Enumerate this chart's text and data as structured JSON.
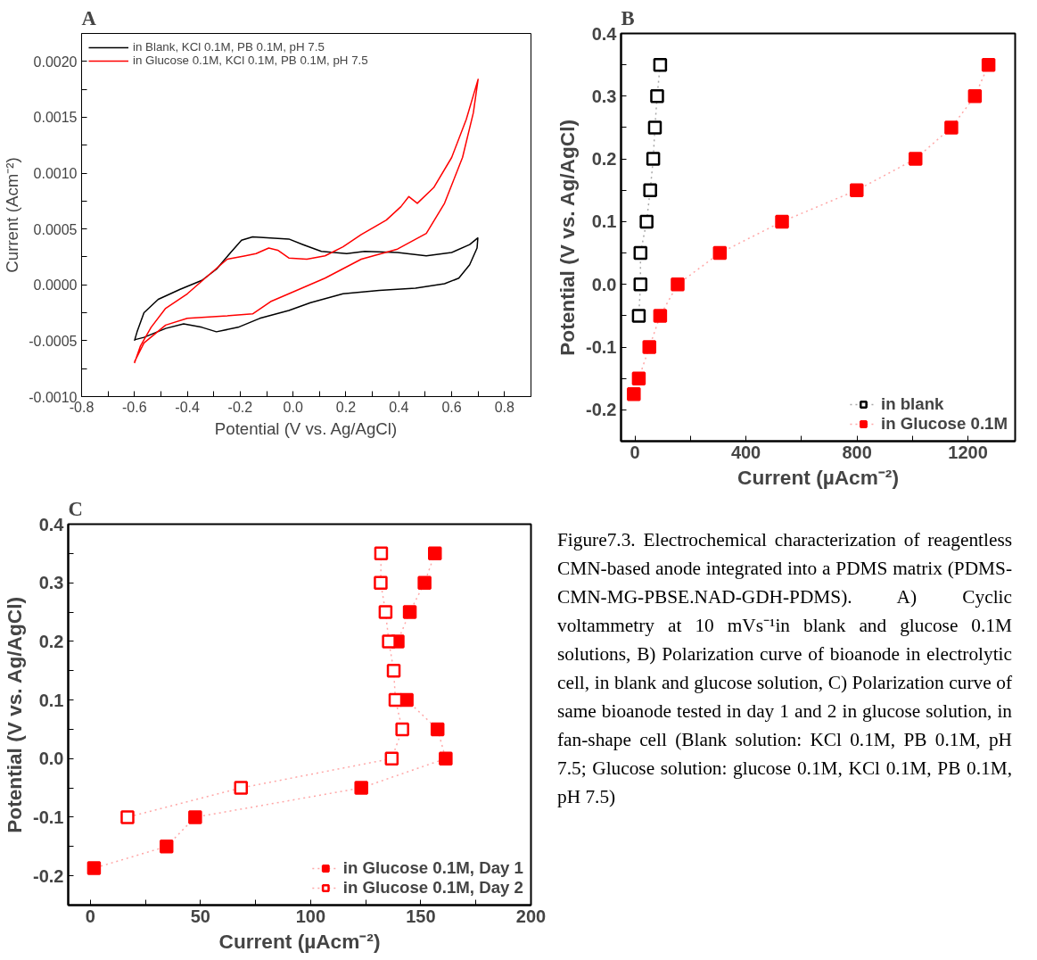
{
  "chart_data": [
    {
      "type": "line",
      "title": "A",
      "xlabel": "Potential (V vs. Ag/AgCl)",
      "ylabel": "Current (Acm⁻²)",
      "xlim": [
        -0.8,
        0.9
      ],
      "ylim": [
        -0.001,
        0.00225
      ],
      "xticks": [
        {
          "value": -0.8,
          "label": "-0.8"
        },
        {
          "value": -0.7,
          "label": null
        },
        {
          "value": -0.6,
          "label": "-0.6"
        },
        {
          "value": -0.5,
          "label": null
        },
        {
          "value": -0.4,
          "label": "-0.4"
        },
        {
          "value": -0.3,
          "label": null
        },
        {
          "value": -0.2,
          "label": "-0.2"
        },
        {
          "value": -0.1,
          "label": null
        },
        {
          "value": 0,
          "label": "0.0"
        },
        {
          "value": 0.1,
          "label": null
        },
        {
          "value": 0.2,
          "label": "0.2"
        },
        {
          "value": 0.3,
          "label": null
        },
        {
          "value": 0.4,
          "label": "0.4"
        },
        {
          "value": 0.5,
          "label": null
        },
        {
          "value": 0.6,
          "label": "0.6"
        },
        {
          "value": 0.7,
          "label": null
        },
        {
          "value": 0.8,
          "label": "0.8"
        }
      ],
      "yticks": [
        {
          "value": -0.001,
          "label": "-0.0010"
        },
        {
          "value": -0.00075,
          "label": null
        },
        {
          "value": -0.0005,
          "label": "-0.0005"
        },
        {
          "value": -0.00025,
          "label": null
        },
        {
          "value": 0,
          "label": "0.0000"
        },
        {
          "value": 0.00025,
          "label": null
        },
        {
          "value": 0.0005,
          "label": "0.0005"
        },
        {
          "value": 0.00075,
          "label": null
        },
        {
          "value": 0.001,
          "label": "0.0010"
        },
        {
          "value": 0.00125,
          "label": null
        },
        {
          "value": 0.0015,
          "label": "0.0015"
        },
        {
          "value": 0.00175,
          "label": null
        },
        {
          "value": 0.002,
          "label": "0.0020"
        }
      ],
      "grid": false,
      "legend": "top left",
      "marker": "none",
      "line_style": "solid",
      "series": [
        {
          "name": "in Blank, KCl 0.1M, PB 0.1M, pH 7.5",
          "color": "#000000",
          "x": [
            -0.6,
            -0.59,
            -0.564,
            -0.51,
            -0.427,
            -0.345,
            -0.29,
            -0.236,
            -0.195,
            -0.153,
            -0.085,
            -0.016,
            0.038,
            0.107,
            0.203,
            0.271,
            0.395,
            0.504,
            0.6,
            0.668,
            0.699,
            0.696,
            0.668,
            0.627,
            0.573,
            0.463,
            0.326,
            0.189,
            0.066,
            -0.016,
            -0.126,
            -0.208,
            -0.29,
            -0.345,
            -0.414,
            -0.482,
            -0.564,
            -0.597
          ],
          "values": [
            -0.0005,
            -0.00042,
            -0.00025,
            -0.00013,
            -4e-05,
            4e-05,
            0.00014,
            0.00029,
            0.0004,
            0.00043,
            0.00042,
            0.00041,
            0.00036,
            0.0003,
            0.00028,
            0.0003,
            0.00029,
            0.00026,
            0.00029,
            0.00036,
            0.00042,
            0.00033,
            0.00018,
            6e-05,
            1e-05,
            -3e-05,
            -5e-05,
            -8e-05,
            -0.00016,
            -0.00023,
            -0.0003,
            -0.00038,
            -0.00042,
            -0.00038,
            -0.00035,
            -0.00039,
            -0.00047,
            -0.00049
          ]
        },
        {
          "name": "in Glucose 0.1M, KCl 0.1M, PB 0.1M, pH 7.5",
          "color": "#ff0000",
          "x": [
            -0.6,
            -0.578,
            -0.537,
            -0.482,
            -0.4,
            -0.318,
            -0.249,
            -0.181,
            -0.14,
            -0.092,
            -0.058,
            -0.016,
            0.052,
            0.121,
            0.189,
            0.258,
            0.353,
            0.408,
            0.438,
            0.47,
            0.532,
            0.6,
            0.655,
            0.7,
            0.682,
            0.641,
            0.573,
            0.504,
            0.395,
            0.258,
            0.121,
            -0.016,
            -0.085,
            -0.153,
            -0.263,
            -0.4,
            -0.482,
            -0.564,
            -0.6
          ],
          "values": [
            -0.0007,
            -0.00055,
            -0.00038,
            -0.00021,
            -8e-05,
            9e-05,
            0.00023,
            0.00026,
            0.00028,
            0.00033,
            0.00031,
            0.00024,
            0.00023,
            0.00026,
            0.00034,
            0.00045,
            0.00058,
            0.0007,
            0.00079,
            0.00073,
            0.00087,
            0.00114,
            0.00148,
            0.00184,
            0.00154,
            0.00114,
            0.00073,
            0.00046,
            0.00032,
            0.00023,
            6e-05,
            -8e-05,
            -0.00015,
            -0.00026,
            -0.00028,
            -0.0003,
            -0.00036,
            -0.00052,
            -0.00069
          ]
        }
      ]
    },
    {
      "type": "line",
      "title": "B",
      "xlabel": "Current (µAcm⁻²)",
      "ylabel": "Potential (V vs. Ag/AgCl)",
      "xlim": [
        -50,
        1370
      ],
      "ylim": [
        -0.25,
        0.4
      ],
      "xticks": [
        0,
        {
          "value": 200,
          "label": null
        },
        400,
        {
          "value": 600,
          "label": null
        },
        800,
        {
          "value": 1000,
          "label": null
        },
        1200
      ],
      "yticks": [
        {
          "value": -0.2,
          "label": "-0.2"
        },
        {
          "value": -0.15,
          "label": null
        },
        {
          "value": -0.1,
          "label": "-0.1"
        },
        {
          "value": -0.05,
          "label": null
        },
        {
          "value": 0,
          "label": "0.0"
        },
        {
          "value": 0.05,
          "label": null
        },
        {
          "value": 0.1,
          "label": "0.1"
        },
        {
          "value": 0.15,
          "label": null
        },
        {
          "value": 0.2,
          "label": "0.2"
        },
        {
          "value": 0.25,
          "label": null
        },
        {
          "value": 0.3,
          "label": "0.3"
        },
        {
          "value": 0.35,
          "label": null
        },
        {
          "value": 0.4,
          "label": "0.4"
        }
      ],
      "grid": false,
      "legend": "bottom right",
      "marker": "square",
      "line_style": "dotted",
      "series": [
        {
          "name": "in blank",
          "color": "#000000",
          "x": [
            91,
            80,
            72,
            66,
            55,
            42,
            20,
            20,
            14
          ],
          "values": [
            0.35,
            0.3,
            0.25,
            0.2,
            0.15,
            0.1,
            0.05,
            0.0,
            -0.05
          ]
        },
        {
          "name": "in Glucose 0.1M",
          "color": "#ff0000",
          "x": [
            1274,
            1225,
            1140,
            1011,
            799,
            530,
            306,
            154,
            91,
            52,
            14,
            -4
          ],
          "values": [
            0.35,
            0.3,
            0.25,
            0.2,
            0.15,
            0.1,
            0.05,
            0.0,
            -0.05,
            -0.1,
            -0.15,
            -0.175
          ]
        }
      ]
    },
    {
      "type": "line",
      "title": "C",
      "xlabel": "Current (µAcm⁻²)",
      "ylabel": "Potential (V vs. Ag/AgCl)",
      "xlim": [
        -10,
        200
      ],
      "ylim": [
        -0.25,
        0.4
      ],
      "xticks": [
        0,
        {
          "value": 25,
          "label": null
        },
        50,
        {
          "value": 75,
          "label": null
        },
        100,
        {
          "value": 125,
          "label": null
        },
        150,
        {
          "value": 175,
          "label": null
        },
        200
      ],
      "yticks": [
        {
          "value": -0.2,
          "label": "-0.2"
        },
        {
          "value": -0.15,
          "label": null
        },
        {
          "value": -0.1,
          "label": "-0.1"
        },
        {
          "value": -0.05,
          "label": null
        },
        {
          "value": 0,
          "label": "0.0"
        },
        {
          "value": 0.05,
          "label": null
        },
        {
          "value": 0.1,
          "label": "0.1"
        },
        {
          "value": 0.15,
          "label": null
        },
        {
          "value": 0.2,
          "label": "0.2"
        },
        {
          "value": 0.25,
          "label": null
        },
        {
          "value": 0.3,
          "label": "0.3"
        },
        {
          "value": 0.35,
          "label": null
        },
        {
          "value": 0.4,
          "label": "0.4"
        }
      ],
      "grid": false,
      "legend": "bottom right",
      "marker": "square",
      "line_style": "dotted",
      "annotations": [
        "Figure7.3. Electrochemical characterization of reagentless CMN-based anode integrated into a PDMS matrix (PDMS-CMN-MG-PBSE.NAD-GDH-PDMS). A) Cyclic voltammetry at 10 mVs⁻¹in blank and glucose 0.1M solutions, B) Polarization curve of bioanode in electrolytic cell, in blank and glucose solution, C) Polarization curve of same bioanode tested in day 1 and 2 in glucose solution, in fan-shape cell (Blank solution: KCl 0.1M, PB 0.1M, pH 7.5; Glucose solution: glucose 0.1M, KCl 0.1M, PB 0.1M, pH 7.5)"
      ],
      "series": [
        {
          "name": "in Glucose 0.1M, Day 1",
          "color": "#ff0000",
          "x": [
            156.4,
            151.7,
            145,
            139.5,
            null,
            143.6,
            157.6,
            161.3,
            123,
            47.6,
            34.6,
            1.7
          ],
          "values": [
            0.35,
            0.3,
            0.25,
            0.2,
            null,
            0.1,
            0.05,
            0.0,
            -0.05,
            -0.1,
            -0.15,
            -0.187
          ]
        },
        {
          "name": "in Glucose 0.1M, Day 2",
          "color": "#ff0000",
          "x": [
            132,
            131.8,
            134,
            135.5,
            137.7,
            138.5,
            141.6,
            136.8,
            68.4,
            16.9
          ],
          "values": [
            0.35,
            0.3,
            0.25,
            0.2,
            0.15,
            0.1,
            0.05,
            0.0,
            -0.05,
            -0.1
          ]
        }
      ]
    }
  ]
}
